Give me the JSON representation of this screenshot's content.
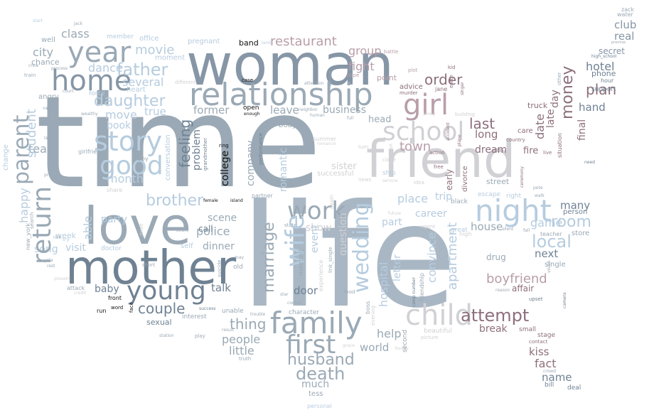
{
  "palette": {
    "slate": "#9aa9b5",
    "dark_slate": "#6f8293",
    "light_blue": "#b6ccdf",
    "pale_blue": "#cbdde9",
    "mauve": "#8d6f7c",
    "light_mauve": "#b99ea9",
    "light_gray": "#d1d1d5",
    "near_black": "#111111",
    "background": "#ffffff"
  },
  "words": {
    "time": "time",
    "life": "life",
    "woman": "woman",
    "friend": "friend",
    "love": "love",
    "mother": "mother",
    "relationship": "relationship",
    "year": "year",
    "home": "home",
    "family": "family",
    "night": "night",
    "young": "young",
    "school": "school",
    "girl": "girl",
    "child": "child",
    "story": "story",
    "good": "good",
    "work": "work",
    "return": "return",
    "parent": "parent",
    "first": "first",
    "wife": "wife",
    "wedding": "wedding",
    "father": "father",
    "money": "money",
    "daughter": "daughter",
    "attempt": "attempt",
    "brother": "brother",
    "student": "student",
    "local": "local",
    "room": "room",
    "marriage": "marriage",
    "husband": "husband",
    "death": "death",
    "movie": "movie",
    "restaurant": "restaurant",
    "couple": "couple",
    "last": "last",
    "plan": "plan",
    "order": "order",
    "boyfriend": "boyfriend",
    "town": "town",
    "date": "date",
    "apartment": "apartment",
    "thing": "thing",
    "people": "people",
    "little": "little",
    "college": "college",
    "police": "police",
    "feeling": "feeling",
    "hotel": "hotel",
    "fight": "fight",
    "group": "group",
    "class": "class",
    "city": "city",
    "team": "team",
    "dance": "dance",
    "several": "several",
    "month": "month",
    "book": "book",
    "move": "move",
    "true": "true",
    "former": "former",
    "leave": "leave",
    "business": "business",
    "head": "head",
    "long": "long",
    "dream": "dream",
    "late": "late",
    "day": "day",
    "hand": "hand",
    "final": "final",
    "club": "club",
    "real": "real",
    "secret": "secret",
    "phone": "phone",
    "hour": "hour",
    "support": "support",
    "fire": "fire",
    "truck": "truck",
    "care": "care",
    "game": "game",
    "many": "many",
    "store": "store",
    "person": "person",
    "next": "next",
    "affair": "affair",
    "single": "single",
    "fact": "fact",
    "kiss": "kiss",
    "name": "name",
    "bill": "bill",
    "deal": "deal",
    "drug": "drug",
    "house": "house",
    "part": "part",
    "place": "place",
    "career": "career",
    "trip": "trip",
    "street": "street",
    "convince": "convince",
    "letter": "letter",
    "hospital": "hospital",
    "help": "help",
    "world": "world",
    "break": "break",
    "much": "much",
    "tess": "tess",
    "personal": "personal",
    "door": "door",
    "talk": "talk",
    "dinner": "dinner",
    "scene": "scene",
    "call": "call",
    "visit": "visit",
    "baby": "baby",
    "song": "song",
    "party": "party",
    "able": "able",
    "week": "week",
    "happy": "happy",
    "close": "close",
    "problem": "problem",
    "company": "company",
    "romantic": "romantic",
    "show": "show",
    "sister": "sister",
    "successful": "successful",
    "sexual": "sexual",
    "interest": "interest",
    "pregnant": "pregnant",
    "band": "band",
    "moment": "moment",
    "office": "office",
    "member": "member",
    "chance": "chance",
    "well": "well",
    "start": "start",
    "jack": "jack",
    "angry": "angry",
    "heart": "heart",
    "force": "force",
    "wealthy": "wealthy",
    "body": "body",
    "open": "open",
    "enough": "enough",
    "case": "case",
    "land": "land",
    "battle": "battle",
    "point": "point",
    "advice": "advice",
    "murder": "murder",
    "jane": "jane",
    "earth": "earth",
    "singer": "singer",
    "kid": "kid",
    "plot": "plot",
    "hope": "hope",
    "building": "building",
    "accident": "accident",
    "jenny": "jenny",
    "action": "action",
    "free": "free",
    "early": "early",
    "divorce": "divorce",
    "escape": "escape",
    "right": "right",
    "great": "great",
    "black": "black",
    "walk": "walk",
    "country": "country",
    "live": "live",
    "ceremony": "ceremony",
    "situation": "situation",
    "stage": "stage",
    "contact": "contact",
    "crowd": "crowd",
    "small": "small",
    "upset": "upset",
    "teacher": "teacher",
    "camera": "camera",
    "need": "need",
    "zack": "zack",
    "water": "water",
    "promise": "promise",
    "other": "other",
    "high_school": "high_school",
    "girlfriend": "girlfriend",
    "change": "change",
    "prison": "prison",
    "large": "large",
    "new_york": "new_york",
    "search": "search",
    "rich": "rich",
    "yola": "yola",
    "rest": "rest",
    "credit": "credit",
    "attack": "attack",
    "present": "present",
    "doctor": "doctor",
    "entire": "entire",
    "self": "self",
    "short": "short",
    "drive": "drive",
    "run": "run",
    "word": "word",
    "front": "front",
    "face": "face",
    "station": "station",
    "play": "play",
    "success": "success",
    "unable": "unable",
    "trouble": "trouble",
    "character": "character",
    "control": "control",
    "star": "star",
    "truth": "truth",
    "result": "result",
    "suicide": "suicide",
    "old": "old",
    "may": "may",
    "female": "female",
    "island": "island",
    "partner": "partner",
    "performance": "performance",
    "ring": "ring",
    "grandmother": "grandmother",
    "conversation": "conversation",
    "summer": "summer",
    "romance": "romance",
    "neighbor": "neighbor",
    "human": "human",
    "full": "full",
    "turn": "turn",
    "claire": "claire",
    "effort": "effort",
    "ship": "ship",
    "news": "news",
    "death_old": "death",
    "state": "state",
    "meeting": "meeting",
    "experience": "experience",
    "link_single": "link_single",
    "boss": "boss",
    "evening": "evening",
    "second": "second",
    "future": "future",
    "buddy": "buddy",
    "beautiful": "beautiful",
    "picture": "picture",
    "food": "food",
    "grace": "grace",
    "camp_number": "camp number",
    "friendship": "friendship",
    "event": "event",
    "question": "question",
    "reason": "reason",
    "pete": "pete",
    "train": "train",
    "crew": "crew",
    "process": "process",
    "court": "court",
    "various": "various",
    "attention": "attention",
    "window": "window",
    "different": "different",
    "idea": "idea",
    "service": "service",
    "mouth": "mouth",
    "agent": "agent",
    "high": "high",
    "soon": "soon",
    "sale": "sale",
    "plane": "plane",
    "silent": "silent",
    "fall": "fall",
    "vision": "vision",
    "owner": "owner",
    "teenage": "teenage",
    "boy": "boy",
    "share": "share",
    "smoke": "smoke",
    "try": "try",
    "quit": "quit"
  }
}
